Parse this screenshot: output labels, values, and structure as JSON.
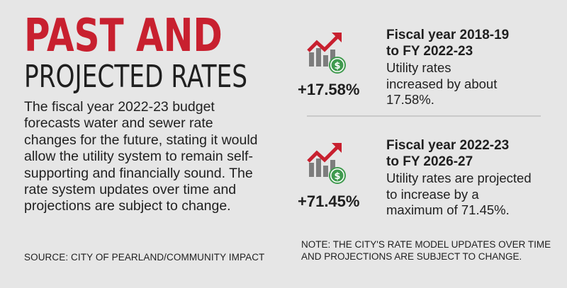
{
  "title": {
    "main": "PAST AND",
    "sub": "PROJECTED RATES"
  },
  "intro": "The fiscal year 2022-23 budget forecasts water and sewer rate changes for the future, stating it would allow the utility system to remain self-supporting and financially sound. The rate system updates over time and projections are subject to change.",
  "source": "SOURCE: CITY OF PEARLAND/COMMUNITY IMPACT",
  "stats": [
    {
      "icon": "rising-bar-chart-dollar-icon",
      "percent": "+17.58%",
      "heading_line1": "Fiscal year 2018-19",
      "heading_line2": "to FY 2022-23",
      "description": "Utility rates increased by about 17.58%."
    },
    {
      "icon": "rising-bar-chart-dollar-icon",
      "percent": "+71.45%",
      "heading_line1": "Fiscal year 2022-23",
      "heading_line2": "to FY 2026-27",
      "description": "Utility rates are projected to increase by a maximum of 71.45%."
    }
  ],
  "note": "NOTE: THE CITY'S RATE MODEL UPDATES OVER TIME AND PROJECTIONS ARE SUBJECT TO CHANGE.",
  "colors": {
    "background": "#e6e6e6",
    "accent_red": "#c8202f",
    "bar_gray": "#7d7d7d",
    "coin_green": "#3f9a4e",
    "text": "#1f1f1f"
  }
}
